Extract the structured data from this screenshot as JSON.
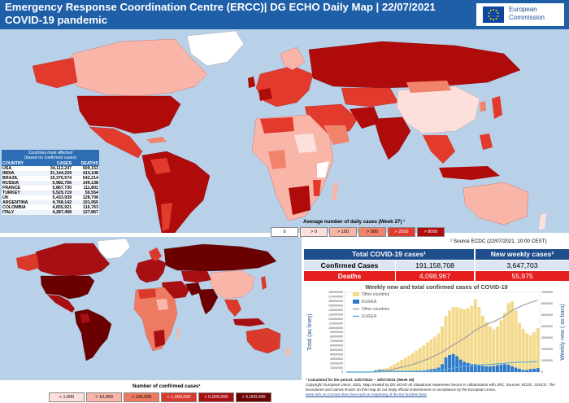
{
  "header": {
    "title_line1": "Emergency Response Coordination Centre (ERCC)| DG ECHO Daily Map | 22/07/2021",
    "title_line2": "COVID-19 pandemic",
    "logo_line1": "European",
    "logo_line2": "Commission"
  },
  "top_map": {
    "affected_table": {
      "caption_line1": "Countries most affected",
      "caption_line2": "(based on confirmed cases)",
      "columns": [
        "COUNTRY",
        "CASES",
        "DEATHS"
      ],
      "rows": [
        [
          "USA",
          "34,112,247",
          "609,153"
        ],
        [
          "INDIA",
          "31,144,229",
          "414,108"
        ],
        [
          "BRAZIL",
          "19,376,574",
          "542,214"
        ],
        [
          "RUSSIA",
          "5,982,766",
          "149,138"
        ],
        [
          "FRANCE",
          "5,867,730",
          "111,801"
        ],
        [
          "TURKEY",
          "5,529,719",
          "50,554"
        ],
        [
          "UK",
          "5,433,939",
          "128,708"
        ],
        [
          "ARGENTINA",
          "4,768,142",
          "101,955"
        ],
        [
          "COLOMBIA",
          "4,655,921",
          "116,763"
        ],
        [
          "ITALY",
          "4,287,458",
          "127,867"
        ]
      ]
    },
    "legend_title": "Average number of daily cases (Week 27) ¹",
    "legend": [
      {
        "label": "0",
        "color": "#ffffff",
        "text_color": "#000000"
      },
      {
        "label": "> 0",
        "color": "#fde0dc",
        "text_color": "#000000"
      },
      {
        "label": "> 100",
        "color": "#f9b6a8",
        "text_color": "#000000"
      },
      {
        "label": "> 500",
        "color": "#f1836b",
        "text_color": "#000000"
      },
      {
        "label": "> 2000",
        "color": "#e23a2d",
        "text_color": "#ffffff"
      },
      {
        "label": "> 8000",
        "color": "#b00b0b",
        "text_color": "#ffffff"
      }
    ],
    "source": "¹ Source ECDC (22/07/2021, 10:00 CEST)"
  },
  "bottom_map": {
    "legend_title": "Number of confirmed cases¹",
    "legend": [
      {
        "label": "< 1,000",
        "color": "#fde0dc",
        "text_color": "#000000"
      },
      {
        "label": "< 10,000",
        "color": "#f9b6a8",
        "text_color": "#000000"
      },
      {
        "label": "> 100,000",
        "color": "#ee7b61",
        "text_color": "#000000"
      },
      {
        "label": "< 1,000,000",
        "color": "#d93a2c",
        "text_color": "#ffffff"
      },
      {
        "label": "< 5,000,000",
        "color": "#a80f12",
        "text_color": "#ffffff"
      },
      {
        "label": "> 5,000,000",
        "color": "#6b0000",
        "text_color": "#ffffff"
      }
    ]
  },
  "summary": {
    "total_header": "Total COVID-19 cases¹",
    "weekly_header": "New weekly cases²",
    "confirmed_label": "Confirmed Cases",
    "confirmed_total": "191,158,708",
    "confirmed_weekly": "3,647,703",
    "deaths_label": "Deaths",
    "deaths_total": "4,098,967",
    "deaths_weekly": "55,975"
  },
  "chart_data": {
    "type": "bar",
    "title": "Weekly new and total confirmed cases of COVID-19",
    "ylabel": "Total (as lines)",
    "y2label": "Weekly new ( as bars)",
    "ylim": [
      0,
      180000000
    ],
    "y2lim": [
      0,
      7000000
    ],
    "yticks": [
      "180000000",
      "170000000",
      "160000000",
      "150000000",
      "140000000",
      "130000000",
      "120000000",
      "110000000",
      "100000000",
      "90000000",
      "80000000",
      "70000000",
      "60000000",
      "50000000",
      "40000000",
      "30000000",
      "20000000",
      "10000000",
      "0"
    ],
    "y2ticks": [
      "7000000",
      "6000000",
      "5000000",
      "4000000",
      "3000000",
      "2000000",
      "1000000",
      "0"
    ],
    "legend": [
      "Other countries",
      "EU/EEA",
      "Other countries",
      "EU/EEA"
    ],
    "series": [
      {
        "name": "Other countries",
        "kind": "bar",
        "color": "#f3d98a",
        "values": [
          0,
          0,
          0,
          0,
          0,
          0,
          0,
          5000,
          20000,
          50000,
          100000,
          200000,
          400000,
          600000,
          800000,
          1000000,
          1200000,
          1400000,
          1600000,
          1800000,
          2000000,
          2200000,
          2400000,
          2600000,
          2800000,
          3000000,
          3300000,
          3600000,
          3900000,
          4100000,
          4300000,
          4500000,
          4600000,
          4800000,
          5100000,
          5700000,
          5100000,
          4400000,
          3900000,
          3500000,
          3200000,
          3400000,
          3900000,
          4500000,
          5400000,
          5700000,
          5000000,
          4000000,
          3600000,
          3200000,
          3000000,
          3200000,
          3500000
        ]
      },
      {
        "name": "EU/EEA",
        "kind": "bar",
        "color": "#2f79c9",
        "values": [
          0,
          0,
          0,
          0,
          0,
          0,
          10000,
          50000,
          150000,
          200000,
          180000,
          150000,
          120000,
          100000,
          80000,
          70000,
          60000,
          60000,
          70000,
          90000,
          110000,
          150000,
          200000,
          250000,
          300000,
          400000,
          700000,
          1300000,
          1500000,
          1600000,
          1400000,
          1100000,
          900000,
          800000,
          700000,
          700000,
          600000,
          550000,
          500000,
          500000,
          550000,
          600000,
          650000,
          700000,
          650000,
          500000,
          400000,
          300000,
          200000,
          200000,
          250000,
          300000,
          350000
        ]
      },
      {
        "name": "Other countries",
        "kind": "line",
        "color": "#a0a0a0",
        "values": [
          0,
          0,
          0,
          0,
          0,
          0,
          0,
          500000,
          1000000,
          1500000,
          2500000,
          3500000,
          5000000,
          7000000,
          9000000,
          11000000,
          13000000,
          15000000,
          17000000,
          20000000,
          23000000,
          26000000,
          29000000,
          33000000,
          37000000,
          41000000,
          45000000,
          50000000,
          56000000,
          61000000,
          66000000,
          71000000,
          76000000,
          82000000,
          88000000,
          94000000,
          99000000,
          103000000,
          107000000,
          111000000,
          114000000,
          118000000,
          122000000,
          127000000,
          133000000,
          139000000,
          143000000,
          147000000,
          151000000,
          154000000,
          157000000,
          160000000,
          163000000
        ]
      },
      {
        "name": "EU/EEA",
        "kind": "line",
        "color": "#5ab0e0",
        "values": [
          0,
          0,
          0,
          0,
          0,
          0,
          0,
          100000,
          300000,
          600000,
          900000,
          1100000,
          1300000,
          1400000,
          1500000,
          1600000,
          1700000,
          1800000,
          1900000,
          2000000,
          2100000,
          2300000,
          2500000,
          2800000,
          3200000,
          3700000,
          4500000,
          6000000,
          7500000,
          9000000,
          10500000,
          11700000,
          12600000,
          13500000,
          14300000,
          15000000,
          15700000,
          16300000,
          16900000,
          17400000,
          17900000,
          18500000,
          19100000,
          19800000,
          20500000,
          21100000,
          21600000,
          22000000,
          22300000,
          22600000,
          22800000,
          23100000,
          23500000
        ]
      }
    ]
  },
  "notes": {
    "calc": "² Calculated for the period: 12/07/2021 – 19/07/2021 (Week 28)",
    "copyright": "Copyright: European Union, 2021, Map created by DG ECHO All Situational Awareness Sector in collaboration with JRC. Sources: ECDC, GISCO. The boundaries and names shown on this map do not imply official endorsement or acceptance by the European Union.",
    "more_info": "More info on Corona Virus here and on reopening of the EU borders here"
  }
}
